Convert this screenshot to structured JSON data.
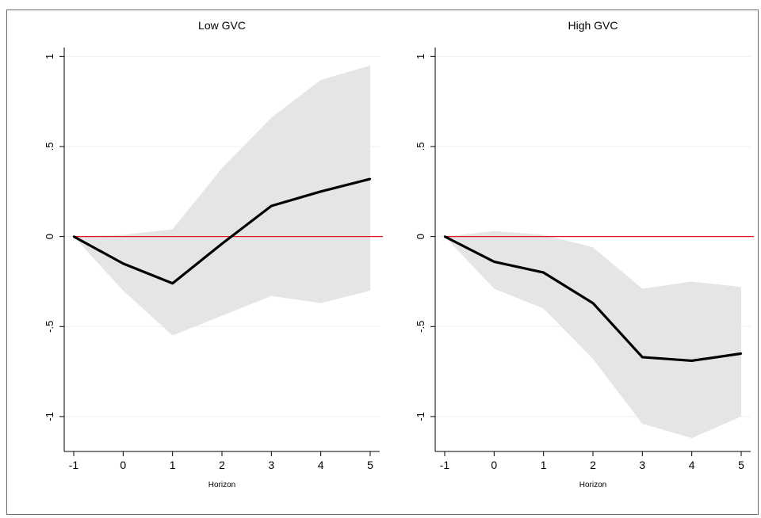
{
  "chart_data": [
    {
      "type": "line",
      "title": "Low GVC",
      "xlabel": "Horizon",
      "ylabel": "",
      "xlim": [
        -1,
        5
      ],
      "ylim": [
        -1.15,
        1.05
      ],
      "x": [
        -1,
        0,
        1,
        2,
        3,
        4,
        5
      ],
      "x_ticks": [
        "-1",
        "0",
        "1",
        "2",
        "3",
        "4",
        "5"
      ],
      "y_ticks": [
        {
          "value": 1,
          "label": "1"
        },
        {
          "value": 0.5,
          "label": ".5"
        },
        {
          "value": 0,
          "label": "0"
        },
        {
          "value": -0.5,
          "label": "-.5"
        },
        {
          "value": -1,
          "label": "-1"
        }
      ],
      "grid": true,
      "series": [
        {
          "role": "estimate",
          "values": [
            0.0,
            -0.15,
            -0.26,
            -0.04,
            0.17,
            0.25,
            0.32
          ],
          "color": "#000000"
        }
      ],
      "band": {
        "lower": [
          0.0,
          -0.3,
          -0.55,
          -0.44,
          -0.33,
          -0.37,
          -0.3
        ],
        "upper": [
          0.0,
          0.01,
          0.04,
          0.38,
          0.66,
          0.87,
          0.95
        ],
        "color": "#e5e5e5"
      },
      "reference_line": {
        "y": 0,
        "color": "#e31a1c"
      }
    },
    {
      "type": "line",
      "title": "High GVC",
      "xlabel": "Horizon",
      "ylabel": "",
      "xlim": [
        -1,
        5
      ],
      "ylim": [
        -1.15,
        1.05
      ],
      "x": [
        -1,
        0,
        1,
        2,
        3,
        4,
        5
      ],
      "x_ticks": [
        "-1",
        "0",
        "1",
        "2",
        "3",
        "4",
        "5"
      ],
      "y_ticks": [
        {
          "value": 1,
          "label": "1"
        },
        {
          "value": 0.5,
          "label": ".5"
        },
        {
          "value": 0,
          "label": "0"
        },
        {
          "value": -0.5,
          "label": "-.5"
        },
        {
          "value": -1,
          "label": "-1"
        }
      ],
      "grid": true,
      "series": [
        {
          "role": "estimate",
          "values": [
            0.0,
            -0.14,
            -0.2,
            -0.37,
            -0.67,
            -0.69,
            -0.65
          ],
          "color": "#000000"
        }
      ],
      "band": {
        "lower": [
          0.0,
          -0.29,
          -0.4,
          -0.68,
          -1.04,
          -1.12,
          -1.0
        ],
        "upper": [
          0.0,
          0.03,
          0.01,
          -0.06,
          -0.29,
          -0.25,
          -0.28
        ],
        "color": "#e5e5e5"
      },
      "reference_line": {
        "y": 0,
        "color": "#e31a1c"
      }
    }
  ]
}
